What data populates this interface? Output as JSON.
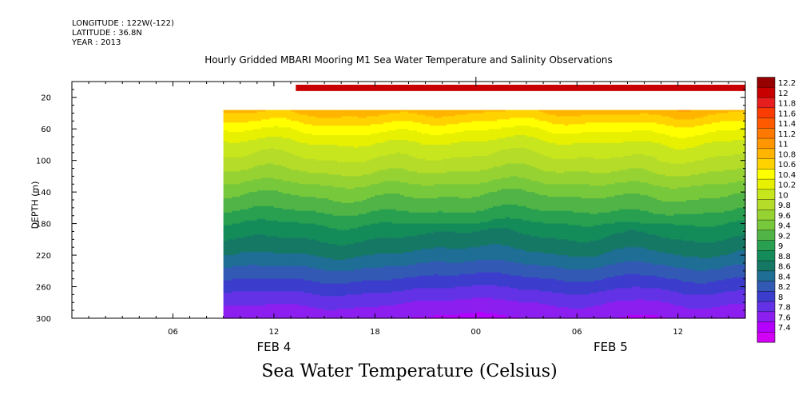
{
  "header": {
    "longitude": "LONGITUDE : 122W(-122)",
    "latitude": "LATITUDE : 36.8N",
    "year": "YEAR : 2013",
    "title": "Hourly Gridded MBARI Mooring M1 Sea Water Temperature and Salinity Observations"
  },
  "footer": {
    "variable_title": "Sea Water Temperature (Celsius)"
  },
  "chart_data": {
    "type": "heatmap",
    "title": "Hourly Gridded MBARI Mooring M1 Sea Water Temperature and Salinity Observations",
    "ylabel": "DEPTH (m)",
    "xlabel": "",
    "x_axis": {
      "range_hours_from_feb4_00": [
        0,
        40
      ],
      "ticks": [
        {
          "hour": 6,
          "label": "06"
        },
        {
          "hour": 12,
          "label": "12"
        },
        {
          "hour": 18,
          "label": "18"
        },
        {
          "hour": 24,
          "label": "00"
        },
        {
          "hour": 30,
          "label": "06"
        },
        {
          "hour": 36,
          "label": "12"
        }
      ],
      "date_labels": [
        {
          "hour": 12,
          "label": "FEB  4"
        },
        {
          "hour": 32,
          "label": "FEB  5"
        }
      ]
    },
    "y_axis": {
      "range": [
        0,
        300
      ],
      "reversed": true,
      "ticks": [
        20,
        60,
        100,
        140,
        180,
        220,
        260,
        300
      ],
      "labels": [
        "20",
        "60",
        "100",
        "140",
        "180",
        "220",
        "260",
        "300"
      ]
    },
    "colorbar": {
      "levels": [
        12.2,
        12,
        11.8,
        11.6,
        11.4,
        11.2,
        11,
        10.8,
        10.6,
        10.4,
        10.2,
        10,
        9.8,
        9.6,
        9.4,
        9.2,
        9,
        8.8,
        8.6,
        8.4,
        8.2,
        8,
        7.8,
        7.6,
        7.4
      ],
      "labels": [
        "12.2",
        "12",
        "11.8",
        "11.6",
        "11.4",
        "11.2",
        "11",
        "10.8",
        "10.6",
        "10.4",
        "10.2",
        "10",
        "9.8",
        "9.6",
        "9.4",
        "9.2",
        "9",
        "8.8",
        "8.6",
        "8.4",
        "8.2",
        "8",
        "7.8",
        "7.6",
        "7.4"
      ],
      "colors": [
        "#960000",
        "#c80000",
        "#e61e1e",
        "#fa3c00",
        "#ff5a00",
        "#ff7800",
        "#ff9600",
        "#ffb400",
        "#ffd200",
        "#ffff00",
        "#e6f000",
        "#c8e61e",
        "#b4dc28",
        "#96d232",
        "#78c83c",
        "#50b446",
        "#28a050",
        "#148c5a",
        "#147864",
        "#1e6e96",
        "#325ab4",
        "#3c3ccd",
        "#6432e6",
        "#8c1ef0",
        "#b400ff",
        "#d200f5"
      ]
    },
    "surface_band": {
      "depth_range": [
        4,
        12
      ],
      "start_hour": 13.3,
      "end_hour": 40,
      "value_range": [
        12.0,
        12.2
      ]
    },
    "data_start_hour": 9,
    "data_depth_range": [
      36,
      300
    ],
    "profile": {
      "depths": [
        36,
        60,
        80,
        100,
        120,
        140,
        160,
        180,
        200,
        220,
        240,
        260,
        280,
        300
      ],
      "temperatures": [
        10.9,
        10.45,
        10.15,
        9.95,
        9.72,
        9.45,
        9.25,
        9.0,
        8.8,
        8.6,
        8.35,
        8.1,
        7.85,
        7.65
      ]
    }
  }
}
